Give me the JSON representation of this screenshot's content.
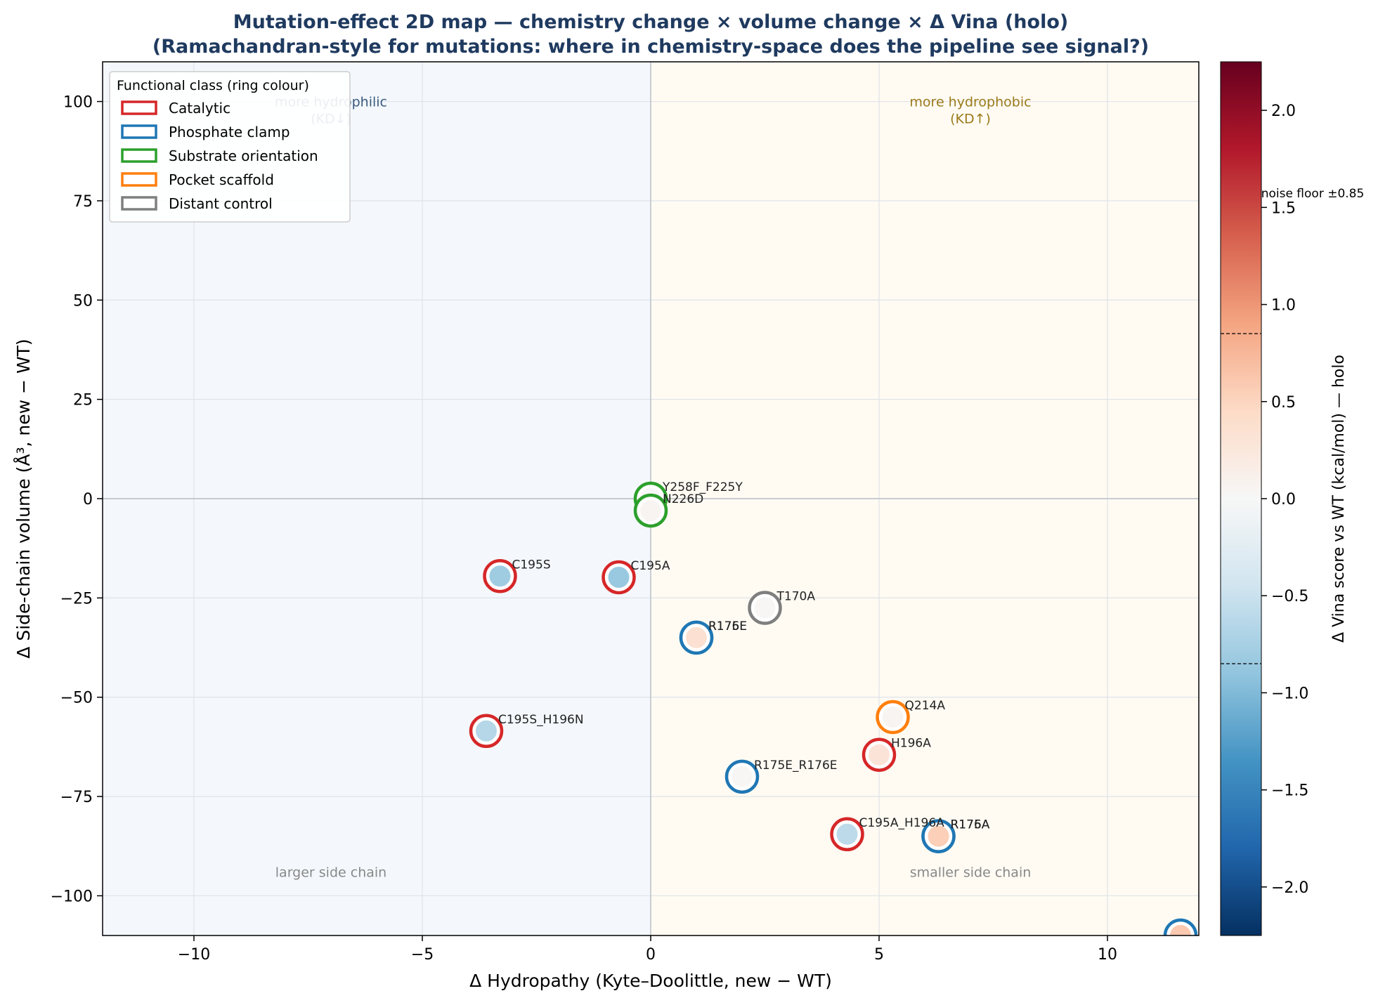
{
  "chart_data": {
    "type": "scatter",
    "title": "Mutation-effect 2D map — chemistry change × volume change × Δ Vina (holo)",
    "subtitle": "(Ramachandran-style for mutations: where in chemistry-space does the pipeline see signal?)",
    "xlabel": "Δ Hydropathy (Kyte–Doolittle, new − WT)",
    "ylabel": "Δ Side-chain volume (Å³, new − WT)",
    "xlim": [
      -12,
      12
    ],
    "ylim": [
      -110,
      110
    ],
    "xticks": [
      -10,
      -5,
      0,
      5,
      10
    ],
    "yticks": [
      -100,
      -75,
      -50,
      -25,
      0,
      25,
      50,
      75,
      100
    ],
    "grid": true,
    "legend": {
      "title": "Functional class (ring colour)",
      "placement": "top-left",
      "entries": [
        {
          "name": "Catalytic",
          "color": "#d62728"
        },
        {
          "name": "Phosphate clamp",
          "color": "#1f77b4"
        },
        {
          "name": "Substrate orientation",
          "color": "#2ca02c"
        },
        {
          "name": "Pocket scaffold",
          "color": "#ff7f0e"
        },
        {
          "name": "Distant control",
          "color": "#7f7f7f"
        }
      ]
    },
    "quadrant_labels": [
      {
        "text": "more hydrophilic\n(KD↓)",
        "x": -7,
        "y": 100,
        "color": "#3b5b7f"
      },
      {
        "text": "more hydrophobic\n(KD↑)",
        "x": 7,
        "y": 100,
        "color": "#9a7a1a"
      },
      {
        "text": "larger side chain",
        "x": -7,
        "y": -94,
        "color": "#888888"
      },
      {
        "text": "smaller side chain",
        "x": 7,
        "y": -94,
        "color": "#888888"
      }
    ],
    "colorbar": {
      "label": "Δ Vina score vs WT (kcal/mol) — holo",
      "range": [
        -2.25,
        2.25
      ],
      "ticks": [
        -2.0,
        -1.5,
        -1.0,
        -0.5,
        0.0,
        0.5,
        1.0,
        1.5,
        2.0
      ],
      "noise_floor": 0.85,
      "noise_floor_label": "noise floor ±0.85",
      "colormap": "RdBu_r"
    },
    "points": [
      {
        "label": "Y258F_F225Y",
        "x": 0,
        "y": 0,
        "dvina": 0.0,
        "class": "Substrate orientation"
      },
      {
        "label": "N226D",
        "x": 0,
        "y": -3,
        "dvina": 0.05,
        "class": "Substrate orientation"
      },
      {
        "label": "C195S",
        "x": -3.3,
        "y": -19.5,
        "dvina": -0.8,
        "class": "Catalytic"
      },
      {
        "label": "C195A",
        "x": -0.7,
        "y": -19.8,
        "dvina": -0.85,
        "class": "Catalytic"
      },
      {
        "label": "T170A",
        "x": 2.5,
        "y": -27.5,
        "dvina": 0.02,
        "class": "Distant control"
      },
      {
        "label": "R175E",
        "x": 1.0,
        "y": -35,
        "dvina": 0.35,
        "class": "Phosphate clamp"
      },
      {
        "label": "R176E",
        "x": 1.0,
        "y": -35,
        "dvina": 0.35,
        "class": "Phosphate clamp"
      },
      {
        "label": "Q214A",
        "x": 5.3,
        "y": -55,
        "dvina": 0.05,
        "class": "Pocket scaffold"
      },
      {
        "label": "C195S_H196N",
        "x": -3.6,
        "y": -58.5,
        "dvina": -0.65,
        "class": "Catalytic"
      },
      {
        "label": "H196A",
        "x": 5.0,
        "y": -64.5,
        "dvina": 0.3,
        "class": "Catalytic"
      },
      {
        "label": "R175E_R176E",
        "x": 2.0,
        "y": -70,
        "dvina": 0.02,
        "class": "Phosphate clamp"
      },
      {
        "label": "C195A_H196A",
        "x": 4.3,
        "y": -84.5,
        "dvina": -0.6,
        "class": "Catalytic"
      },
      {
        "label": "R175A",
        "x": 6.3,
        "y": -85,
        "dvina": 0.55,
        "class": "Phosphate clamp"
      },
      {
        "label": "R176A",
        "x": 6.3,
        "y": -85,
        "dvina": 0.55,
        "class": "Phosphate clamp"
      },
      {
        "label": "",
        "x": 11.6,
        "y": -110,
        "dvina": 0.6,
        "class": "Phosphate clamp"
      }
    ]
  }
}
